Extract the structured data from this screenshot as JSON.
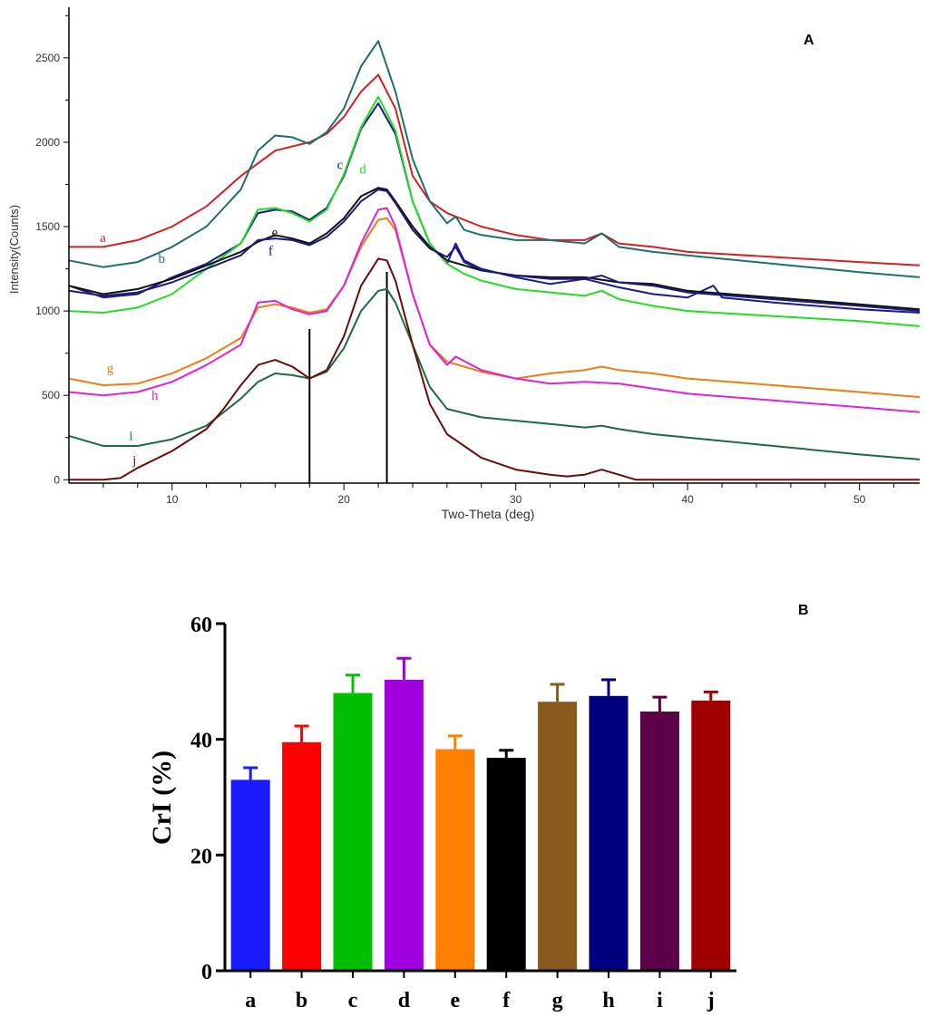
{
  "chart_data": [
    {
      "type": "line",
      "panel_label": "A",
      "xlabel": "Two-Theta (deg)",
      "ylabel": "Intensity(Counts)",
      "xlim": [
        4,
        53.5
      ],
      "ylim": [
        -20,
        2800
      ],
      "x_ticks": [
        10,
        20,
        30,
        40,
        50
      ],
      "y_ticks": [
        0,
        500,
        1000,
        1500,
        2000,
        2500
      ],
      "reference_lines_x": [
        18,
        22.5
      ],
      "series": [
        {
          "name": "a",
          "color": "#d42020",
          "label_x": 5.8,
          "label_y": 1410,
          "x": [
            4,
            6,
            8,
            10,
            12,
            14,
            16,
            18,
            19,
            20,
            21,
            22,
            23,
            24,
            25,
            26,
            28,
            30,
            32,
            34,
            35,
            36,
            38,
            40,
            45,
            50,
            53.5
          ],
          "y": [
            1380,
            1380,
            1420,
            1500,
            1620,
            1800,
            1950,
            2000,
            2050,
            2150,
            2300,
            2400,
            2200,
            1800,
            1650,
            1580,
            1500,
            1450,
            1420,
            1420,
            1460,
            1400,
            1380,
            1350,
            1320,
            1290,
            1270
          ]
        },
        {
          "name": "b",
          "color": "#1e6e6e",
          "label_x": 9.2,
          "label_y": 1285,
          "x": [
            4,
            6,
            8,
            10,
            12,
            14,
            15,
            16,
            17,
            18,
            19,
            20,
            21,
            22,
            23,
            24,
            25,
            26,
            26.5,
            27,
            28,
            30,
            32,
            34,
            35,
            36,
            38,
            40,
            45,
            50,
            53.5
          ],
          "y": [
            1300,
            1260,
            1290,
            1380,
            1500,
            1720,
            1950,
            2040,
            2030,
            1990,
            2060,
            2200,
            2450,
            2600,
            2300,
            1900,
            1650,
            1520,
            1560,
            1480,
            1450,
            1420,
            1420,
            1400,
            1460,
            1380,
            1350,
            1330,
            1280,
            1230,
            1200
          ]
        },
        {
          "name": "c",
          "color": "#1b1b8f",
          "label_x": 19.6,
          "label_y": 1840,
          "x": [
            4,
            6,
            8,
            10,
            12,
            14,
            15,
            16,
            17,
            18,
            19,
            20,
            21,
            22,
            23,
            24,
            25,
            26,
            26.5,
            27,
            28,
            30,
            32,
            34,
            36,
            38,
            40,
            41.5,
            42,
            45,
            50,
            53.5
          ],
          "y": [
            1150,
            1080,
            1100,
            1200,
            1280,
            1400,
            1580,
            1600,
            1590,
            1540,
            1610,
            1800,
            2080,
            2230,
            2050,
            1650,
            1400,
            1280,
            1400,
            1300,
            1250,
            1200,
            1160,
            1190,
            1140,
            1100,
            1080,
            1150,
            1080,
            1050,
            1010,
            990
          ]
        },
        {
          "name": "d",
          "color": "#22dd22",
          "label_x": 20.9,
          "label_y": 1815,
          "x": [
            4,
            6,
            8,
            10,
            12,
            14,
            15,
            16,
            17,
            18,
            19,
            20,
            21,
            22,
            23,
            24,
            25,
            26,
            27,
            28,
            30,
            32,
            34,
            35,
            36,
            38,
            40,
            45,
            50,
            53.5
          ],
          "y": [
            1000,
            990,
            1020,
            1100,
            1250,
            1400,
            1600,
            1610,
            1580,
            1530,
            1600,
            1810,
            2090,
            2270,
            2070,
            1650,
            1400,
            1280,
            1220,
            1180,
            1130,
            1110,
            1090,
            1120,
            1070,
            1030,
            1000,
            970,
            940,
            910
          ]
        },
        {
          "name": "e",
          "color": "#111111",
          "label_x": 15.8,
          "label_y": 1440,
          "x": [
            4,
            6,
            8,
            10,
            12,
            14,
            15,
            16,
            17,
            18,
            19,
            20,
            21,
            22,
            22.5,
            23,
            24,
            25,
            26,
            28,
            30,
            32,
            34,
            36,
            38,
            40,
            45,
            50,
            53.5
          ],
          "y": [
            1150,
            1100,
            1130,
            1190,
            1270,
            1350,
            1410,
            1450,
            1430,
            1400,
            1460,
            1550,
            1680,
            1730,
            1720,
            1650,
            1500,
            1380,
            1300,
            1240,
            1210,
            1200,
            1200,
            1170,
            1160,
            1120,
            1080,
            1040,
            1010
          ]
        },
        {
          "name": "f",
          "color": "#1a1a7a",
          "label_x": 15.6,
          "label_y": 1330,
          "x": [
            4,
            6,
            8,
            10,
            12,
            14,
            15,
            16,
            17,
            18,
            19,
            20,
            21,
            22,
            22.5,
            23,
            24,
            25,
            26,
            26.5,
            27,
            28,
            30,
            32,
            34,
            35,
            36,
            38,
            40,
            45,
            50,
            53.5
          ],
          "y": [
            1120,
            1090,
            1110,
            1170,
            1250,
            1330,
            1420,
            1430,
            1420,
            1390,
            1440,
            1530,
            1650,
            1720,
            1710,
            1640,
            1480,
            1370,
            1320,
            1380,
            1290,
            1240,
            1210,
            1190,
            1190,
            1210,
            1170,
            1150,
            1110,
            1070,
            1030,
            1000
          ]
        },
        {
          "name": "g",
          "color": "#ee7b10",
          "label_x": 6.2,
          "label_y": 635,
          "x": [
            4,
            6,
            8,
            10,
            12,
            14,
            15,
            16,
            17,
            18,
            19,
            20,
            21,
            22,
            22.5,
            23,
            24,
            25,
            26,
            28,
            30,
            32,
            34,
            35,
            36,
            38,
            40,
            45,
            50,
            53.5
          ],
          "y": [
            600,
            560,
            570,
            630,
            720,
            840,
            1020,
            1040,
            1020,
            990,
            1010,
            1150,
            1380,
            1540,
            1550,
            1480,
            1100,
            800,
            700,
            640,
            600,
            630,
            650,
            670,
            650,
            630,
            600,
            560,
            520,
            490
          ]
        },
        {
          "name": "h",
          "color": "#dd22dd",
          "label_x": 8.8,
          "label_y": 475,
          "x": [
            4,
            6,
            8,
            10,
            12,
            14,
            15,
            16,
            17,
            18,
            19,
            20,
            21,
            22,
            22.5,
            23,
            24,
            25,
            26,
            26.5,
            28,
            30,
            32,
            34,
            36,
            38,
            40,
            45,
            50,
            53.5
          ],
          "y": [
            520,
            500,
            520,
            580,
            680,
            800,
            1050,
            1060,
            1010,
            980,
            1000,
            1150,
            1400,
            1600,
            1610,
            1500,
            1100,
            800,
            680,
            730,
            650,
            600,
            570,
            580,
            570,
            540,
            510,
            470,
            430,
            400
          ]
        },
        {
          "name": "i",
          "color": "#1a6b40",
          "label_x": 7.5,
          "label_y": 235,
          "x": [
            4,
            6,
            8,
            10,
            12,
            14,
            15,
            16,
            17,
            18,
            19,
            20,
            21,
            22,
            22.5,
            23,
            24,
            25,
            26,
            28,
            30,
            32,
            34,
            35,
            36,
            38,
            40,
            45,
            50,
            53.5
          ],
          "y": [
            260,
            200,
            200,
            240,
            320,
            480,
            580,
            630,
            620,
            600,
            640,
            780,
            1000,
            1120,
            1130,
            1050,
            800,
            550,
            420,
            370,
            350,
            330,
            310,
            320,
            300,
            270,
            250,
            200,
            150,
            120
          ]
        },
        {
          "name": "j",
          "color": "#6a0a0a",
          "label_x": 7.7,
          "label_y": 90,
          "x": [
            4,
            6,
            7,
            8,
            10,
            12,
            13,
            14,
            15,
            16,
            17,
            18,
            19,
            20,
            21,
            22,
            22.5,
            23,
            24,
            25,
            26,
            27,
            28,
            30,
            32,
            33,
            34,
            35,
            36,
            37,
            38,
            40,
            45,
            53.5
          ],
          "y": [
            0,
            0,
            10,
            70,
            170,
            300,
            420,
            560,
            680,
            710,
            670,
            600,
            650,
            850,
            1150,
            1310,
            1300,
            1180,
            800,
            450,
            270,
            200,
            130,
            60,
            30,
            20,
            30,
            60,
            30,
            0,
            0,
            0,
            0,
            0
          ]
        }
      ]
    },
    {
      "type": "bar",
      "panel_label": "B",
      "title": "",
      "xlabel": "",
      "ylabel": "CrI (%)",
      "ylim": [
        0,
        60
      ],
      "y_ticks": [
        0,
        20,
        40,
        60
      ],
      "categories": [
        "a",
        "b",
        "c",
        "d",
        "e",
        "f",
        "g",
        "h",
        "i",
        "j"
      ],
      "values": [
        33,
        39.5,
        48,
        50.3,
        38.3,
        36.8,
        46.5,
        47.5,
        44.8,
        46.7
      ],
      "errors": [
        2.1,
        2.8,
        3.1,
        3.7,
        2.3,
        1.3,
        3.0,
        2.8,
        2.5,
        1.5
      ],
      "colors": [
        "#1a1aff",
        "#ff0000",
        "#00bf00",
        "#a000e0",
        "#ff7f00",
        "#000000",
        "#8b5a1e",
        "#00007f",
        "#5c004a",
        "#a00000"
      ]
    }
  ]
}
